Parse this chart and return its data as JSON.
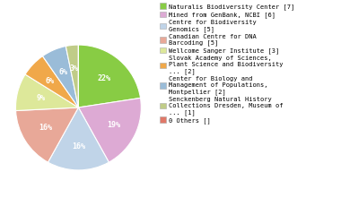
{
  "labels": [
    "Naturalis Biodiversity Center [7]",
    "Mined from GenBank, NCBI [6]",
    "Centre for Biodiversity\nGenomics [5]",
    "Canadian Centre for DNA\nBarcoding [5]",
    "Wellcome Sanger Institute [3]",
    "Slovak Academy of Sciences,\nPlant Science and Biodiversity\n... [2]",
    "Center for Biology and\nManagement of Populations,\nMontpellier [2]",
    "Senckenberg Natural History\nCollections Dresden, Museum of\n... [1]",
    "0 Others []"
  ],
  "values": [
    7,
    6,
    5,
    5,
    3,
    2,
    2,
    1,
    0.0001
  ],
  "colors": [
    "#88cc44",
    "#ddaad4",
    "#c0d4e8",
    "#e8a898",
    "#dde89a",
    "#f0a84a",
    "#9abcd8",
    "#c0cc88",
    "#e07868"
  ],
  "pct_labels": [
    "22%",
    "19%",
    "16%",
    "16%",
    "9%",
    "6%",
    "6%",
    "3%",
    ""
  ],
  "background_color": "#ffffff",
  "wedge_edge_color": "#ffffff"
}
